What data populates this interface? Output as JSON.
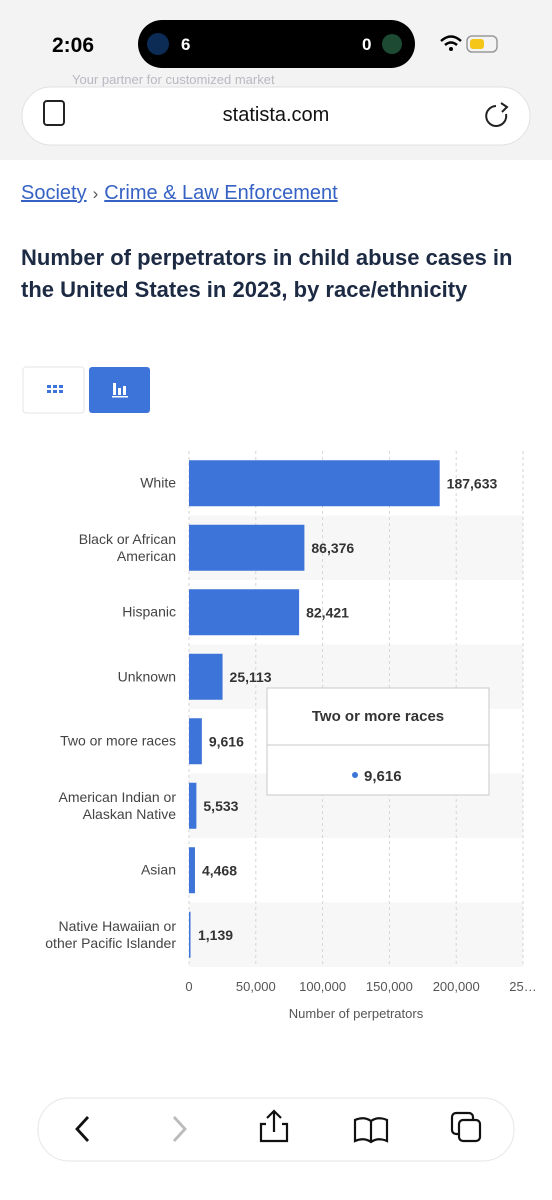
{
  "status": {
    "time": "2:06",
    "score_left": "6",
    "score_right": "0"
  },
  "ad_text": "Your partner for customized market",
  "browser": {
    "url": "statista.com"
  },
  "breadcrumb": {
    "items": [
      "Society",
      "Crime & Law Enforcement"
    ],
    "separator": "›"
  },
  "chart_data": {
    "type": "bar",
    "orientation": "horizontal",
    "title": "Number of perpetrators in child abuse cases in the United States in 2023, by race/ethnicity",
    "categories": [
      "White",
      "Black or African American",
      "Hispanic",
      "Unknown",
      "Two or more races",
      "American Indian or Alaskan Native",
      "Asian",
      "Native Hawaiian or other Pacific Islander"
    ],
    "values": [
      187633,
      86376,
      82421,
      25113,
      9616,
      5533,
      4468,
      1139
    ],
    "value_labels": [
      "187,633",
      "86,376",
      "82,421",
      "25,113",
      "9,616",
      "5,533",
      "4,468",
      "1,139"
    ],
    "color": "#3d74d9",
    "xlim": [
      0,
      250000
    ],
    "xticks": [
      0,
      {
        "value": 50000,
        "label": "50,000"
      },
      {
        "value": 100000,
        "label": "100,000"
      },
      {
        "value": 150000,
        "label": "150,000"
      },
      {
        "value": 200000,
        "label": "200,000"
      },
      {
        "value": 250000,
        "label": "25…"
      }
    ],
    "xlabel": "Number of perpetrators",
    "grid": true
  },
  "tooltip": {
    "title": "Two or more races",
    "value": "9,616"
  }
}
